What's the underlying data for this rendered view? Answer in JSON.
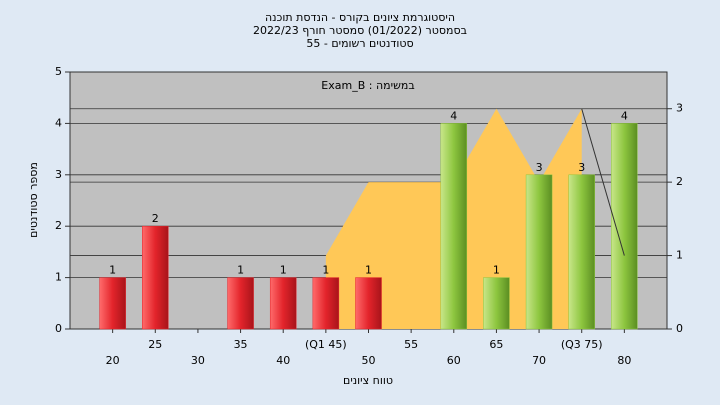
{
  "chart_data": {
    "type": "bar",
    "title": "היסטוגרמת ציונים בקורס - הנדסת תוכנה",
    "subtitles": [
      "בסמסטר  (01/2022)  סמסטר חורף 2022/23",
      "סטודנטים רשומים - 55"
    ],
    "annotation": "Exam_B : במשימה",
    "x_label": "טווח ציונים",
    "y_label": "מספר סטודנטים",
    "x": [
      20,
      25,
      30,
      35,
      40,
      45,
      50,
      55,
      60,
      65,
      70,
      75,
      80
    ],
    "xticks": [
      20,
      25,
      30,
      35,
      40,
      {
        "value": 45,
        "label": "(Q1 45)"
      },
      50,
      55,
      60,
      65,
      70,
      {
        "value": 75,
        "label": "(Q3 75)"
      },
      80
    ],
    "values": [
      1,
      2,
      0,
      1,
      1,
      1,
      1,
      0,
      4,
      1,
      3,
      3,
      4
    ],
    "colors": [
      "#e3242b",
      "#e3242b",
      "#e3242b",
      "#e3242b",
      "#e3242b",
      "#e3242b",
      "#e3242b",
      "#8dc63f",
      "#8dc63f",
      "#8dc63f",
      "#8dc63f",
      "#8dc63f",
      "#8dc63f"
    ],
    "xlim": [
      15,
      85
    ],
    "ylim": [
      0,
      5
    ],
    "yticks": [
      0,
      1,
      2,
      3,
      4,
      5
    ],
    "y2lim": [
      0,
      3.5
    ],
    "y2ticks": [
      0,
      1,
      2,
      3
    ],
    "grid": true,
    "series": [
      {
        "type": "area",
        "axis": "y2",
        "color": "#ffc857",
        "x": [
          45,
          50,
          60,
          65,
          70,
          75
        ],
        "values": [
          1,
          2,
          2,
          3,
          2,
          3
        ]
      },
      {
        "type": "line",
        "axis": "y2",
        "color": "#333333",
        "x": [
          75,
          80
        ],
        "values": [
          3,
          1
        ]
      }
    ]
  }
}
